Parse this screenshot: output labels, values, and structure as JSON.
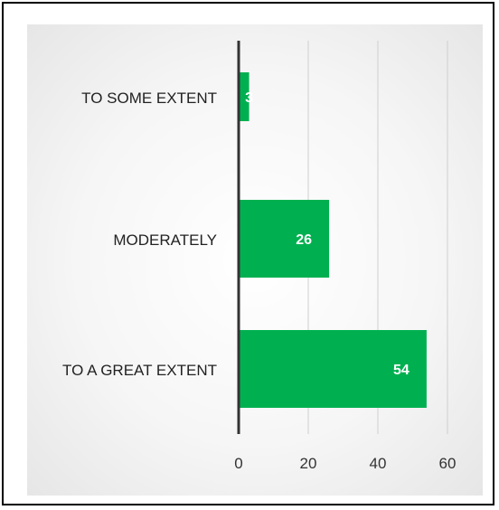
{
  "chart_data": {
    "type": "bar",
    "orientation": "horizontal",
    "categories": [
      "TO SOME EXTENT",
      "MODERATELY",
      "TO A GREAT EXTENT"
    ],
    "values": [
      3,
      26,
      54
    ],
    "data_labels": [
      "3",
      "26",
      "54"
    ],
    "title": "",
    "xlabel": "",
    "ylabel": "",
    "xlim": [
      0,
      60
    ],
    "xticks": [
      "0",
      "20",
      "40",
      "60"
    ],
    "grid": "vertical",
    "legend": "none",
    "bar_color": "#00b050",
    "axis_color": "#333333",
    "grid_color": "#cfcfcf"
  }
}
